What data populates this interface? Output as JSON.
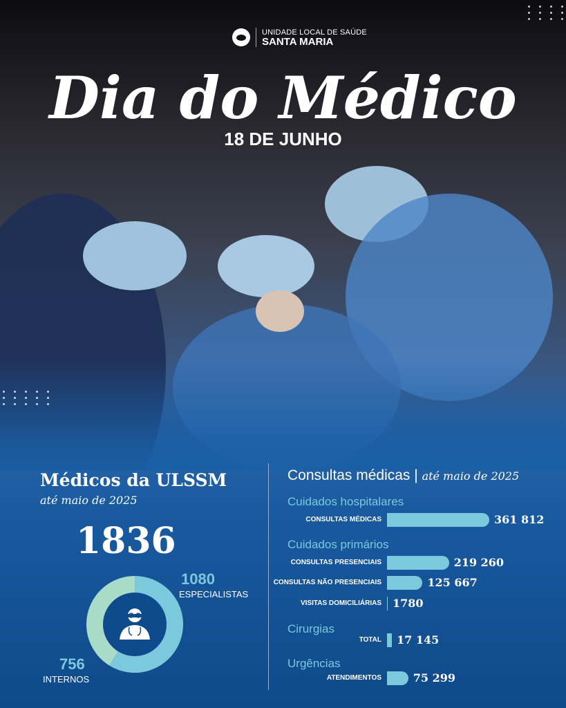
{
  "header": {
    "org_line1": "UNIDADE LOCAL DE SAÚDE",
    "org_line2": "SANTA MARIA",
    "title": "Dia do Médico",
    "date": "18 DE JUNHO"
  },
  "left": {
    "title": "Médicos da ULSSM",
    "subtitle": "até maio de 2025",
    "total": "1836",
    "specialists_value": "1080",
    "specialists_label": "ESPECIALISTAS",
    "interns_value": "756",
    "interns_label": "INTERNOS"
  },
  "right": {
    "title": "Consultas médicas",
    "title_sep": "|",
    "subtitle": "até maio de 2025",
    "sections": [
      {
        "name": "Cuidados hospitalares",
        "rows": [
          {
            "label": "CONSULTAS MÉDICAS",
            "value": "361 812"
          }
        ]
      },
      {
        "name": "Cuidados primários",
        "rows": [
          {
            "label": "CONSULTAS PRESENCIAIS",
            "value": "219 260"
          },
          {
            "label": "CONSULTAS NÃO PRESENCIAIS",
            "value": "125 667"
          },
          {
            "label": "VISITAS DOMICILIÁRIAS",
            "value": "1780"
          }
        ]
      },
      {
        "name": "Cirurgias",
        "rows": [
          {
            "label": "TOTAL",
            "value": "17 145"
          }
        ]
      },
      {
        "name": "Urgências",
        "rows": [
          {
            "label": "ATENDIMENTOS",
            "value": "75 299"
          }
        ]
      }
    ]
  },
  "colors": {
    "accent": "#7cc8dc",
    "donut_interns": "#a8dcc8",
    "background_blue": "#1a5fa5"
  },
  "chart_data": [
    {
      "type": "pie",
      "subtype": "donut",
      "values": [
        1080,
        756
      ],
      "labels": [
        "ESPECIALISTAS",
        "INTERNOS"
      ],
      "colors": [
        "#7cc8dc",
        "#a8dcc8"
      ],
      "center_icon": "doctor-icon"
    },
    {
      "type": "bar",
      "orientation": "horizontal",
      "categories": [
        "CONSULTAS MÉDICAS",
        "CONSULTAS PRESENCIAIS",
        "CONSULTAS NÃO PRESENCIAIS",
        "VISITAS DOMICILIÁRIAS",
        "TOTAL",
        "ATENDIMENTOS"
      ],
      "values": [
        361812,
        219260,
        125667,
        1780,
        17145,
        75299
      ]
    }
  ]
}
